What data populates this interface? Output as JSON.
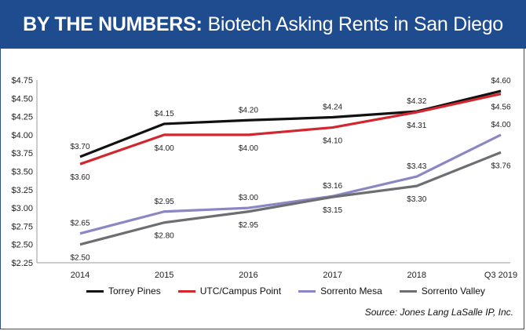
{
  "title_bold": "BY THE NUMBERS:",
  "title_rest": "Biotech Asking Rents in San Diego",
  "source": "Source: Jones Lang LaSalle IP, Inc.",
  "chart_data": {
    "type": "line",
    "categories": [
      "2014",
      "2015",
      "2016",
      "2017",
      "2018",
      "Q3 2019"
    ],
    "ylim": [
      2.25,
      4.75
    ],
    "yticks": [
      "$2.25",
      "$2.50",
      "$2.75",
      "$3.00",
      "$3.25",
      "$3.50",
      "$3.75",
      "$4.00",
      "$4.25",
      "$4.50",
      "$4.75"
    ],
    "yticks_values": [
      2.25,
      2.5,
      2.75,
      3.0,
      3.25,
      3.5,
      3.75,
      4.0,
      4.25,
      4.5,
      4.75
    ],
    "grid": false,
    "legend_position": "bottom",
    "series": [
      {
        "name": "Torrey Pines",
        "color": "#111111",
        "values": [
          3.7,
          4.15,
          4.2,
          4.24,
          4.32,
          4.6
        ],
        "labels": [
          "$3.70",
          "$4.15",
          "$4.20",
          "$4.24",
          "$4.32",
          "$4.60"
        ],
        "label_side": "above"
      },
      {
        "name": "UTC/Campus Point",
        "color": "#d22630",
        "values": [
          3.6,
          4.0,
          4.0,
          4.1,
          4.31,
          4.56
        ],
        "labels": [
          "$3.60",
          "$4.00",
          "$4.00",
          "$4.10",
          "$4.31",
          "$4.56"
        ],
        "label_side": "below"
      },
      {
        "name": "Sorrento Mesa",
        "color": "#8b86c4",
        "values": [
          2.65,
          2.95,
          3.0,
          3.16,
          3.43,
          4.0
        ],
        "labels": [
          "$2.65",
          "$2.95",
          "$3.00",
          "$3.16",
          "$3.43",
          "$4.00"
        ],
        "label_side": "above"
      },
      {
        "name": "Sorrento Valley",
        "color": "#6d6e71",
        "values": [
          2.5,
          2.8,
          2.95,
          3.15,
          3.3,
          3.76
        ],
        "labels": [
          "$2.50",
          "$2.80",
          "$2.95",
          "$3.15",
          "$3.30",
          "$3.76"
        ],
        "label_side": "below"
      }
    ]
  }
}
